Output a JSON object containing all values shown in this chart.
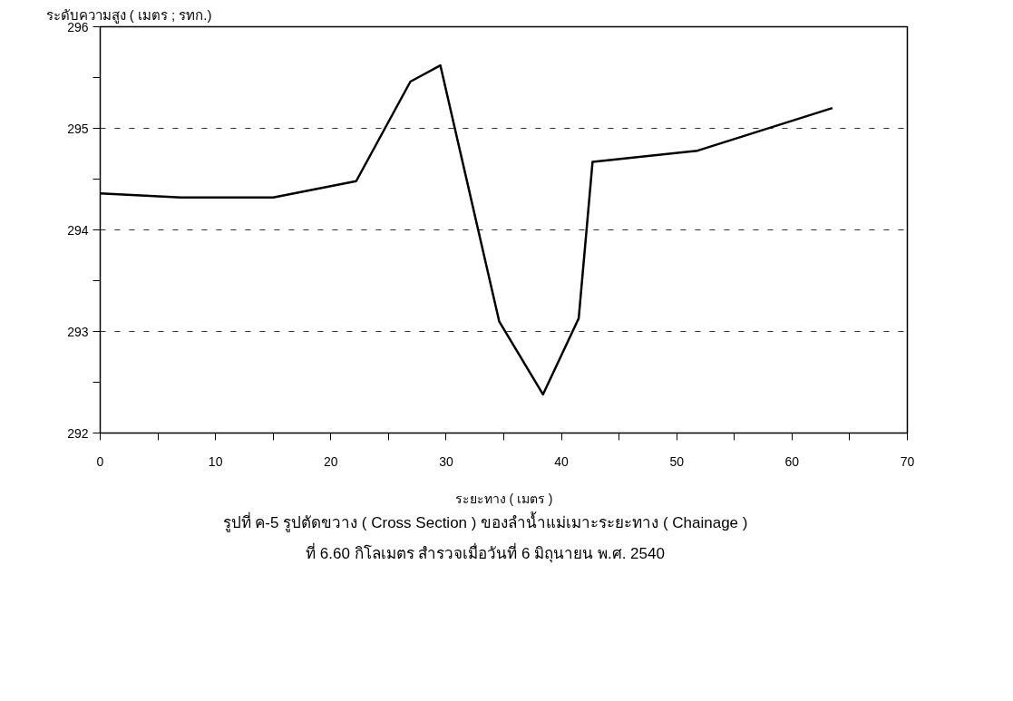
{
  "chart_data": {
    "type": "line",
    "xlabel": "ระยะทาง ( เมตร )",
    "ylabel": "ระดับความสูง ( เมตร ; รทก.)",
    "annotations": [
      "รูปที่  ค-5   รูปตัดขวาง ( Cross Section ) ของลำน้ำแม่เมาะระยะทาง  ( Chainage )",
      "ที่  6.60  กิโลเมตร  สำรวจเมื่อวันที่  6  มิถุนายน พ.ศ. 2540"
    ],
    "x": [
      0,
      7,
      15,
      22.2,
      26.9,
      29.5,
      34.6,
      38.4,
      41.5,
      42.7,
      51.8,
      63.5
    ],
    "series": [
      {
        "color": "#000000",
        "values": [
          294.36,
          294.32,
          294.32,
          294.48,
          295.46,
          295.62,
          293.1,
          292.38,
          293.13,
          294.67,
          294.78,
          295.2
        ]
      }
    ],
    "xlim": [
      0,
      70
    ],
    "ylim": [
      292,
      296
    ],
    "xticks": [
      0,
      {
        "value": 5,
        "label": null
      },
      10,
      {
        "value": 15,
        "label": null
      },
      20,
      {
        "value": 25,
        "label": null
      },
      30,
      {
        "value": 35,
        "label": null
      },
      40,
      {
        "value": 45,
        "label": null
      },
      50,
      {
        "value": 55,
        "label": null
      },
      60,
      {
        "value": 65,
        "label": null
      },
      70
    ],
    "yticks": [
      292,
      {
        "value": 292.5,
        "label": null
      },
      293,
      {
        "value": 293.5,
        "label": null
      },
      294,
      {
        "value": 294.5,
        "label": null
      },
      295,
      {
        "value": 295.5,
        "label": null
      },
      296
    ],
    "grid": "y",
    "line_style": "solid",
    "marker": "none"
  }
}
